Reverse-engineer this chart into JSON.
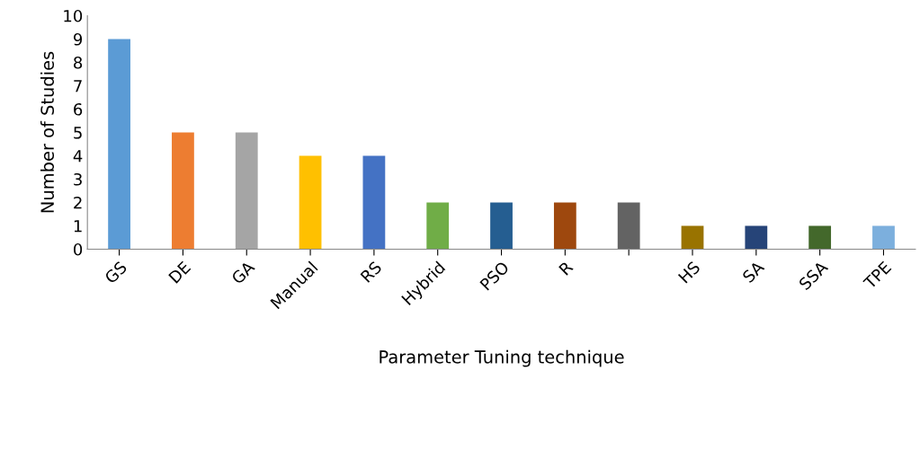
{
  "chart_data": {
    "type": "bar",
    "xlabel": "Parameter Tuning technique",
    "ylabel": "Number of Studies",
    "categories": [
      "GS",
      "DE",
      "GA",
      "Manual",
      "RS",
      "Hybrid",
      "PSO",
      "R",
      null,
      "HS",
      "SA",
      "SSA",
      "TPE"
    ],
    "values": [
      9,
      5,
      5,
      4,
      4,
      2,
      2,
      2,
      2,
      1,
      1,
      1,
      1
    ],
    "colors": [
      "#5b9bd5",
      "#ed7d31",
      "#a5a5a5",
      "#ffc000",
      "#4472c4",
      "#70ad47",
      "#255e91",
      "#9e480e",
      "#636363",
      "#997300",
      "#264478",
      "#43682b",
      "#7cafdd"
    ],
    "ylim": [
      0,
      10
    ],
    "yticks": [
      0,
      1,
      2,
      3,
      4,
      5,
      6,
      7,
      8,
      9,
      10
    ],
    "grid": false,
    "legend": false
  }
}
